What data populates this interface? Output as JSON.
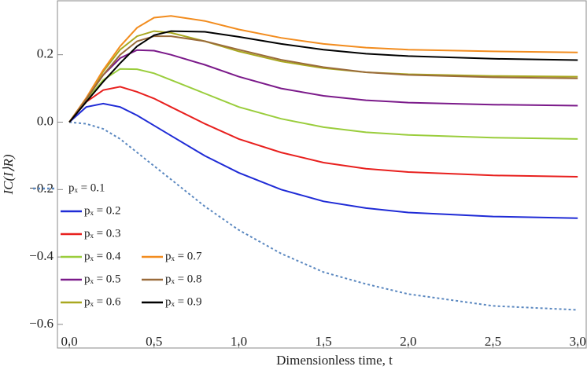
{
  "chart_data": {
    "type": "line",
    "xlabel": "Dimensionless time, t",
    "ylabel": "IC(I⟩R)",
    "x": [
      0,
      0.1,
      0.2,
      0.3,
      0.4,
      0.5,
      0.6,
      0.8,
      1.0,
      1.25,
      1.5,
      1.75,
      2.0,
      2.5,
      3.0
    ],
    "xlim": [
      -0.07,
      3.05
    ],
    "ylim": [
      -0.67,
      0.36
    ],
    "xticks": [
      {
        "value": 0,
        "label": "0.0"
      },
      0.5,
      {
        "value": 1,
        "label": "1.0"
      },
      1.5,
      {
        "value": 2,
        "label": "2.0"
      },
      2.5,
      {
        "value": 3,
        "label": "3.0"
      }
    ],
    "yticks": [
      {
        "value": -0.6,
        "label": "−0.6"
      },
      {
        "value": -0.4,
        "label": "−0.4"
      },
      {
        "value": -0.2,
        "label": "−0.2"
      },
      {
        "value": 0,
        "label": "0.0"
      },
      0.2
    ],
    "series": [
      {
        "name": "pₓ = 0.1",
        "color": "#5b88c0",
        "style": "dashed",
        "values": [
          0,
          -0.005,
          -0.02,
          -0.05,
          -0.09,
          -0.13,
          -0.17,
          -0.25,
          -0.32,
          -0.39,
          -0.445,
          -0.48,
          -0.51,
          -0.545,
          -0.557
        ]
      },
      {
        "name": "pₓ = 0.2",
        "color": "#1f2bd6",
        "values": [
          0,
          0.045,
          0.055,
          0.045,
          0.02,
          -0.01,
          -0.04,
          -0.1,
          -0.15,
          -0.2,
          -0.235,
          -0.255,
          -0.268,
          -0.28,
          -0.285
        ]
      },
      {
        "name": "pₓ = 0.3",
        "color": "#e8201e",
        "values": [
          0,
          0.06,
          0.095,
          0.105,
          0.09,
          0.07,
          0.045,
          -0.005,
          -0.05,
          -0.09,
          -0.12,
          -0.138,
          -0.148,
          -0.158,
          -0.162
        ]
      },
      {
        "name": "pₓ = 0.4",
        "color": "#9acd3c",
        "values": [
          0,
          0.065,
          0.125,
          0.158,
          0.157,
          0.145,
          0.125,
          0.085,
          0.045,
          0.01,
          -0.015,
          -0.03,
          -0.038,
          -0.046,
          -0.05
        ]
      },
      {
        "name": "pₓ = 0.5",
        "color": "#7b1a8a",
        "values": [
          0,
          0.068,
          0.14,
          0.19,
          0.214,
          0.212,
          0.2,
          0.17,
          0.135,
          0.1,
          0.078,
          0.065,
          0.058,
          0.052,
          0.049
        ]
      },
      {
        "name": "pₓ = 0.6",
        "color": "#a9a820",
        "values": [
          0,
          0.07,
          0.15,
          0.215,
          0.255,
          0.27,
          0.265,
          0.24,
          0.21,
          0.18,
          0.16,
          0.148,
          0.142,
          0.137,
          0.135
        ]
      },
      {
        "name": "pₓ = 0.7",
        "color": "#f28c1e",
        "values": [
          0,
          0.072,
          0.155,
          0.225,
          0.28,
          0.31,
          0.315,
          0.3,
          0.275,
          0.25,
          0.232,
          0.221,
          0.215,
          0.21,
          0.207
        ]
      },
      {
        "name": "pₓ = 0.8",
        "color": "#9a6b3a",
        "values": [
          0,
          0.068,
          0.14,
          0.2,
          0.24,
          0.255,
          0.255,
          0.24,
          0.215,
          0.185,
          0.163,
          0.148,
          0.14,
          0.133,
          0.13
        ]
      },
      {
        "name": "pₓ = 0.9",
        "color": "#000000",
        "values": [
          0,
          0.06,
          0.12,
          0.175,
          0.225,
          0.258,
          0.27,
          0.268,
          0.253,
          0.232,
          0.215,
          0.203,
          0.196,
          0.188,
          0.184
        ]
      }
    ]
  }
}
